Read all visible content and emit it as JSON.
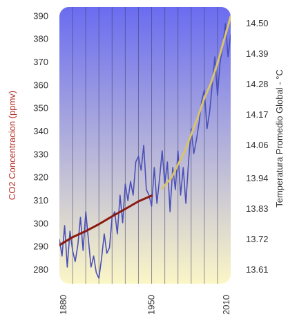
{
  "chart_data": {
    "type": "line",
    "xlabel": "",
    "ylabel": "CO2 Concentracion (ppmv)",
    "y2label": "Temperatura Promedio Global - °C",
    "xlim": [
      1880,
      2010
    ],
    "ylim": [
      274,
      394
    ],
    "y2lim": [
      13.56,
      14.56
    ],
    "x_ticks": [
      "1880",
      "1950",
      "2010"
    ],
    "y_ticks": [
      "390",
      "380",
      "370",
      "360",
      "350",
      "340",
      "330",
      "320",
      "310",
      "300",
      "290",
      "280"
    ],
    "y2_ticks": [
      "14.50",
      "14.39",
      "14.28",
      "14.17",
      "14.06",
      "13.94",
      "13.83",
      "13.72",
      "13.61"
    ],
    "grid": true,
    "vertical_gridlines_x": [
      1890,
      1900,
      1910,
      1920,
      1930,
      1940,
      1950,
      1960,
      1970,
      1980,
      1990,
      2000
    ],
    "background_gradient": [
      "#6a6cf0",
      "#fbf6c6"
    ],
    "series": [
      {
        "axis": "right",
        "color": "#4a4fb8",
        "x": [
          1880,
          1882,
          1884,
          1886,
          1888,
          1890,
          1892,
          1894,
          1896,
          1898,
          1900,
          1902,
          1904,
          1906,
          1908,
          1910,
          1912,
          1914,
          1916,
          1918,
          1920,
          1922,
          1924,
          1926,
          1928,
          1930,
          1932,
          1934,
          1936,
          1938,
          1940,
          1942,
          1944,
          1946,
          1948,
          1950,
          1952,
          1954,
          1956,
          1958,
          1960,
          1962,
          1964,
          1966,
          1968,
          1970,
          1972,
          1974,
          1976,
          1978,
          1980,
          1982,
          1984,
          1986,
          1988,
          1990,
          1992,
          1994,
          1996,
          1998,
          2000,
          2002,
          2004,
          2006,
          2008,
          2010
        ],
        "values": [
          13.72,
          13.66,
          13.77,
          13.62,
          13.75,
          13.68,
          13.64,
          13.7,
          13.8,
          13.68,
          13.82,
          13.72,
          13.62,
          13.66,
          13.6,
          13.58,
          13.65,
          13.74,
          13.67,
          13.69,
          13.8,
          13.82,
          13.74,
          13.88,
          13.78,
          13.92,
          13.86,
          13.93,
          13.88,
          14.0,
          14.02,
          13.97,
          14.06,
          13.9,
          13.88,
          13.84,
          13.98,
          13.85,
          13.94,
          14.04,
          13.92,
          14.0,
          13.82,
          13.98,
          13.9,
          14.04,
          13.88,
          13.98,
          13.85,
          14.0,
          14.12,
          14.03,
          14.08,
          14.14,
          14.22,
          14.26,
          14.12,
          14.18,
          14.28,
          14.38,
          14.24,
          14.36,
          14.42,
          14.5,
          14.38,
          14.46
        ]
      },
      {
        "axis": "left",
        "color": "#8a1a12",
        "x": [
          1880,
          1890,
          1900,
          1910,
          1920,
          1930,
          1940,
          1950
        ],
        "values": [
          290.7,
          294.2,
          296.8,
          299.8,
          303.2,
          306.4,
          309.7,
          312.2
        ]
      },
      {
        "axis": "left",
        "color": "#d9c46a",
        "x": [
          1958,
          1965,
          1970,
          1975,
          1980,
          1985,
          1990,
          1995,
          2000,
          2005,
          2010
        ],
        "values": [
          315.3,
          320.0,
          325.7,
          331.1,
          338.7,
          346.1,
          354.4,
          360.9,
          369.6,
          379.8,
          389.9
        ]
      }
    ]
  }
}
